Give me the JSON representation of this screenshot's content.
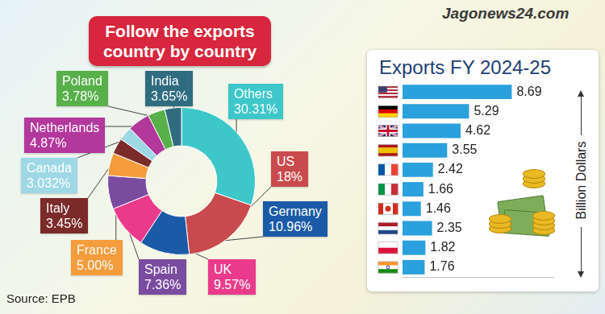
{
  "header": {
    "logo": "Jagonews24.com"
  },
  "source": "Source: EPB",
  "chart_data": [
    {
      "type": "doughnut",
      "title": "Follow the exports country by country",
      "categories": [
        "Others",
        "US",
        "Germany",
        "UK",
        "Spain",
        "France",
        "Italy",
        "Canada",
        "Netherlands",
        "Poland",
        "India"
      ],
      "values": [
        30.31,
        18,
        10.96,
        9.57,
        7.36,
        5,
        3.45,
        3.032,
        4.87,
        3.78,
        3.65
      ],
      "value_labels": [
        "30.31%",
        "18%",
        "10.96%",
        "9.57%",
        "7.36%",
        "5.00%",
        "3.45%",
        "3.032%",
        "4.87%",
        "3.78%",
        "3.65%"
      ],
      "colors": [
        "#3ec7c9",
        "#c94a4c",
        "#1b5aa6",
        "#ea3a8b",
        "#7a4c9f",
        "#f59c3c",
        "#7b2b2a",
        "#9ed8e4",
        "#b2389b",
        "#58b04a",
        "#2f6c80"
      ],
      "data_labels": true
    },
    {
      "type": "bar",
      "orientation": "horizontal",
      "title": "Exports FY 2024-25",
      "xlabel": "Billion Dollars",
      "categories": [
        null,
        null,
        null,
        null,
        null,
        null,
        null,
        null,
        null,
        null
      ],
      "values": [
        8.69,
        5.29,
        4.62,
        3.55,
        2.42,
        1.66,
        1.46,
        2.35,
        1.82,
        1.76
      ],
      "color": "#2aa0dc",
      "xlim": [
        0,
        12
      ],
      "xticks": [],
      "grid": false,
      "tick_labels": false,
      "data_labels": true
    }
  ]
}
